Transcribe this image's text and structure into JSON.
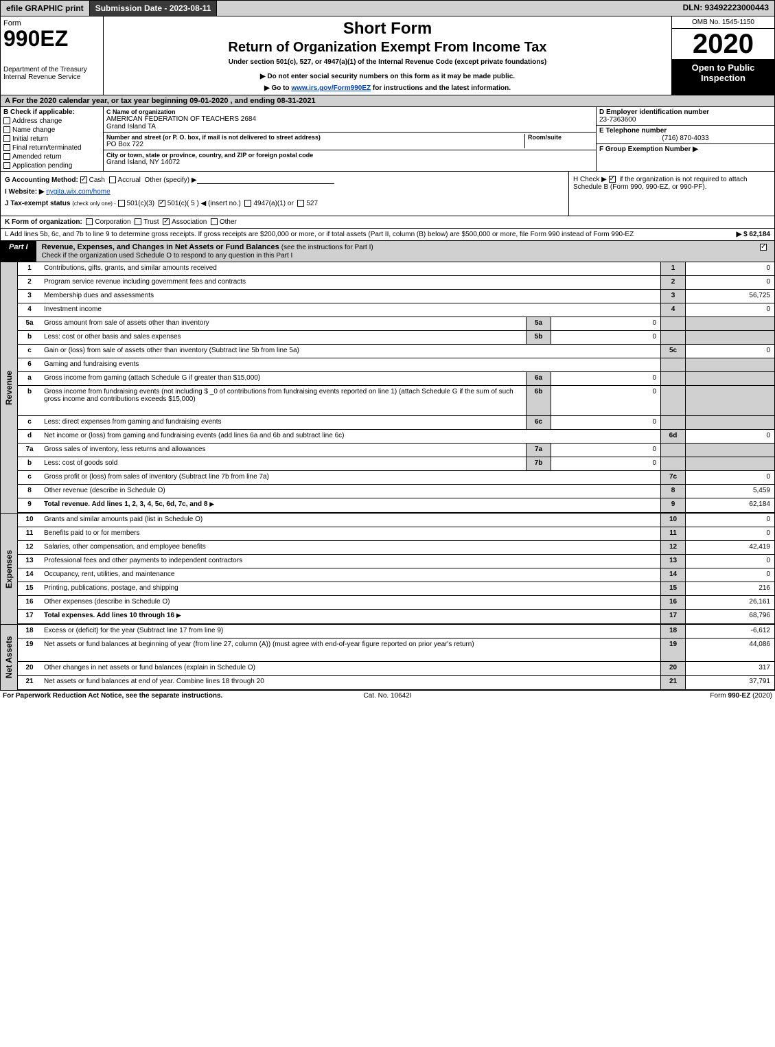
{
  "topbar": {
    "efile": "efile GRAPHIC print",
    "submission": "Submission Date - 2023-08-11",
    "dln": "DLN: 93492223000443"
  },
  "header": {
    "form_word": "Form",
    "form_num": "990EZ",
    "dept": "Department of the Treasury",
    "irs": "Internal Revenue Service",
    "short_form": "Short Form",
    "return_title": "Return of Organization Exempt From Income Tax",
    "under": "Under section 501(c), 527, or 4947(a)(1) of the Internal Revenue Code (except private foundations)",
    "warn": "▶ Do not enter social security numbers on this form as it may be made public.",
    "goto_prefix": "▶ Go to ",
    "goto_link": "www.irs.gov/Form990EZ",
    "goto_suffix": " for instructions and the latest information.",
    "omb": "OMB No. 1545-1150",
    "year": "2020",
    "open": "Open to Public Inspection"
  },
  "row_A": "A For the 2020 calendar year, or tax year beginning 09-01-2020 , and ending 08-31-2021",
  "col_B": {
    "label": "B Check if applicable:",
    "opts": [
      "Address change",
      "Name change",
      "Initial return",
      "Final return/terminated",
      "Amended return",
      "Application pending"
    ]
  },
  "col_C": {
    "name_hdr": "C Name of organization",
    "name1": "AMERICAN FEDERATION OF TEACHERS 2684",
    "name2": "Grand Island TA",
    "street_hdr": "Number and street (or P. O. box, if mail is not delivered to street address)",
    "room_hdr": "Room/suite",
    "street": "PO Box 722",
    "city_hdr": "City or town, state or province, country, and ZIP or foreign postal code",
    "city": "Grand Island, NY  14072"
  },
  "col_DEF": {
    "d_hdr": "D Employer identification number",
    "d_val": "23-7363600",
    "e_hdr": "E Telephone number",
    "e_val": "(716) 870-4033",
    "f_hdr": "F Group Exemption Number  ▶"
  },
  "ghij": {
    "g_label": "G Accounting Method:",
    "g_cash": "Cash",
    "g_accrual": "Accrual",
    "g_other": "Other (specify) ▶",
    "i_label": "I Website: ▶",
    "i_val": "nygita.wix.com/home",
    "j_label": "J Tax-exempt status",
    "j_note": "(check only one) -",
    "j_501c3": "501(c)(3)",
    "j_501c": "501(c)( 5 ) ◀ (insert no.)",
    "j_4947": "4947(a)(1) or",
    "j_527": "527",
    "h_text1": "H Check ▶",
    "h_text2": "if the organization is not required to attach Schedule B (Form 990, 990-EZ, or 990-PF)."
  },
  "row_K": {
    "label": "K Form of organization:",
    "corp": "Corporation",
    "trust": "Trust",
    "assoc": "Association",
    "other": "Other"
  },
  "row_L": {
    "text": "L Add lines 5b, 6c, and 7b to line 9 to determine gross receipts. If gross receipts are $200,000 or more, or if total assets (Part II, column (B) below) are $500,000 or more, file Form 990 instead of Form 990-EZ",
    "amount": "▶ $ 62,184"
  },
  "part1": {
    "tag": "Part I",
    "title": "Revenue, Expenses, and Changes in Net Assets or Fund Balances",
    "subtitle": "(see the instructions for Part I)",
    "check_line": "Check if the organization used Schedule O to respond to any question in this Part I"
  },
  "side_labels": {
    "revenue": "Revenue",
    "expenses": "Expenses",
    "netassets": "Net Assets"
  },
  "revenue_rows": [
    {
      "n": "1",
      "d": "Contributions, gifts, grants, and similar amounts received",
      "ln": "1",
      "v": "0"
    },
    {
      "n": "2",
      "d": "Program service revenue including government fees and contracts",
      "ln": "2",
      "v": "0"
    },
    {
      "n": "3",
      "d": "Membership dues and assessments",
      "ln": "3",
      "v": "56,725"
    },
    {
      "n": "4",
      "d": "Investment income",
      "ln": "4",
      "v": "0"
    }
  ],
  "r5a": {
    "n": "5a",
    "d": "Gross amount from sale of assets other than inventory",
    "in": "5a",
    "iv": "0"
  },
  "r5b": {
    "n": "b",
    "d": "Less: cost or other basis and sales expenses",
    "in": "5b",
    "iv": "0"
  },
  "r5c": {
    "n": "c",
    "d": "Gain or (loss) from sale of assets other than inventory (Subtract line 5b from line 5a)",
    "ln": "5c",
    "v": "0"
  },
  "r6": {
    "n": "6",
    "d": "Gaming and fundraising events"
  },
  "r6a": {
    "n": "a",
    "d": "Gross income from gaming (attach Schedule G if greater than $15,000)",
    "in": "6a",
    "iv": "0"
  },
  "r6b": {
    "n": "b",
    "d": "Gross income from fundraising events (not including $ _0          of contributions from fundraising events reported on line 1) (attach Schedule G if the sum of such gross income and contributions exceeds $15,000)",
    "in": "6b",
    "iv": "0"
  },
  "r6c": {
    "n": "c",
    "d": "Less: direct expenses from gaming and fundraising events",
    "in": "6c",
    "iv": "0"
  },
  "r6d": {
    "n": "d",
    "d": "Net income or (loss) from gaming and fundraising events (add lines 6a and 6b and subtract line 6c)",
    "ln": "6d",
    "v": "0"
  },
  "r7a": {
    "n": "7a",
    "d": "Gross sales of inventory, less returns and allowances",
    "in": "7a",
    "iv": "0"
  },
  "r7b": {
    "n": "b",
    "d": "Less: cost of goods sold",
    "in": "7b",
    "iv": "0"
  },
  "r7c": {
    "n": "c",
    "d": "Gross profit or (loss) from sales of inventory (Subtract line 7b from line 7a)",
    "ln": "7c",
    "v": "0"
  },
  "r8": {
    "n": "8",
    "d": "Other revenue (describe in Schedule O)",
    "ln": "8",
    "v": "5,459"
  },
  "r9": {
    "n": "9",
    "d": "Total revenue. Add lines 1, 2, 3, 4, 5c, 6d, 7c, and 8",
    "ln": "9",
    "v": "62,184",
    "bold": true,
    "arrow": true
  },
  "expense_rows": [
    {
      "n": "10",
      "d": "Grants and similar amounts paid (list in Schedule O)",
      "ln": "10",
      "v": "0"
    },
    {
      "n": "11",
      "d": "Benefits paid to or for members",
      "ln": "11",
      "v": "0"
    },
    {
      "n": "12",
      "d": "Salaries, other compensation, and employee benefits",
      "ln": "12",
      "v": "42,419"
    },
    {
      "n": "13",
      "d": "Professional fees and other payments to independent contractors",
      "ln": "13",
      "v": "0"
    },
    {
      "n": "14",
      "d": "Occupancy, rent, utilities, and maintenance",
      "ln": "14",
      "v": "0"
    },
    {
      "n": "15",
      "d": "Printing, publications, postage, and shipping",
      "ln": "15",
      "v": "216"
    },
    {
      "n": "16",
      "d": "Other expenses (describe in Schedule O)",
      "ln": "16",
      "v": "26,161"
    },
    {
      "n": "17",
      "d": "Total expenses. Add lines 10 through 16",
      "ln": "17",
      "v": "68,796",
      "bold": true,
      "arrow": true
    }
  ],
  "netassets_rows": [
    {
      "n": "18",
      "d": "Excess or (deficit) for the year (Subtract line 17 from line 9)",
      "ln": "18",
      "v": "-6,612"
    },
    {
      "n": "19",
      "d": "Net assets or fund balances at beginning of year (from line 27, column (A)) (must agree with end-of-year figure reported on prior year's return)",
      "ln": "19",
      "v": "44,086",
      "multi": true
    },
    {
      "n": "20",
      "d": "Other changes in net assets or fund balances (explain in Schedule O)",
      "ln": "20",
      "v": "317"
    },
    {
      "n": "21",
      "d": "Net assets or fund balances at end of year. Combine lines 18 through 20",
      "ln": "21",
      "v": "37,791"
    }
  ],
  "footer": {
    "left": "For Paperwork Reduction Act Notice, see the separate instructions.",
    "mid": "Cat. No. 10642I",
    "right_pre": "Form ",
    "right_bold": "990-EZ",
    "right_post": " (2020)"
  }
}
